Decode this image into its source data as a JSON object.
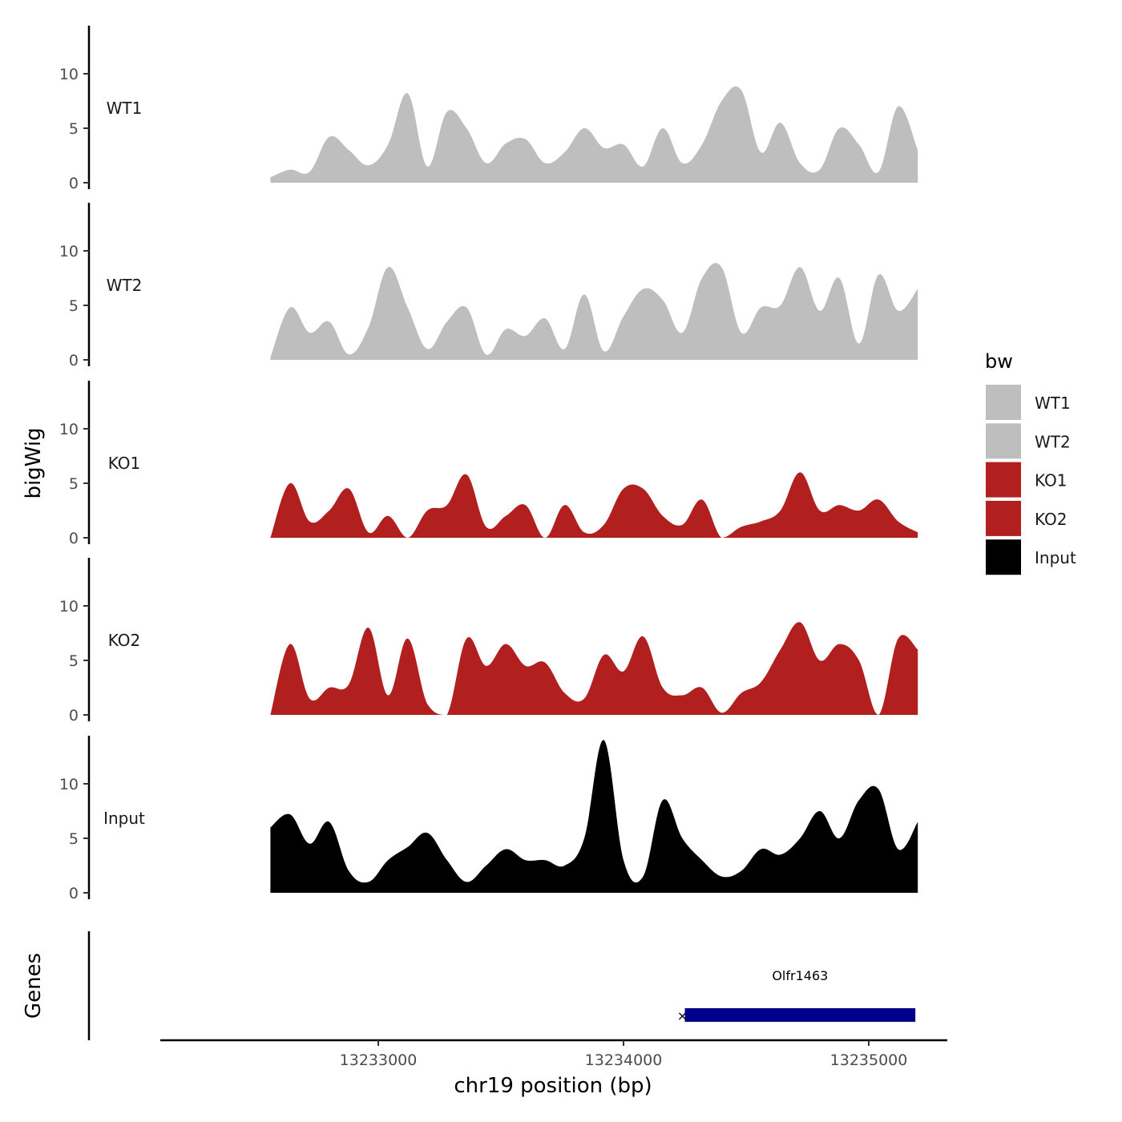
{
  "chart_data": {
    "type": "area",
    "x_axis": {
      "title": "chr19 position (bp)",
      "range": [
        13232100,
        13235300
      ],
      "ticks": [
        13233000,
        13234000,
        13235000
      ],
      "tick_labels": [
        "13233000",
        "13234000",
        "13235000"
      ]
    },
    "y_axis": {
      "title": "bigWig",
      "range": [
        0,
        14.5
      ],
      "ticks": [
        0,
        5,
        10
      ],
      "tick_labels": [
        "0",
        "5",
        "10"
      ]
    },
    "series_x": [
      13232560,
      13232640,
      13232720,
      13232800,
      13232880,
      13232960,
      13233040,
      13233120,
      13233200,
      13233280,
      13233360,
      13233440,
      13233520,
      13233600,
      13233680,
      13233760,
      13233840,
      13233920,
      13234000,
      13234080,
      13234160,
      13234240,
      13234320,
      13234400,
      13234480,
      13234560,
      13234640,
      13234720,
      13234800,
      13234880,
      13234960,
      13235040,
      13235120,
      13235200
    ],
    "series": [
      {
        "name": "WT1",
        "color": "#bebebe",
        "values": [
          0.5,
          1.2,
          1.0,
          4.2,
          3.0,
          1.6,
          3.5,
          8.2,
          1.5,
          6.5,
          5.0,
          1.8,
          3.6,
          4.0,
          1.8,
          2.8,
          5.0,
          3.2,
          3.5,
          1.5,
          5.0,
          1.8,
          3.5,
          7.5,
          8.5,
          2.8,
          5.5,
          1.8,
          1.2,
          5.0,
          3.5,
          1.0,
          7.0,
          3.0
        ]
      },
      {
        "name": "WT2",
        "color": "#bebebe",
        "values": [
          0.2,
          4.8,
          2.5,
          3.5,
          0.5,
          3.0,
          8.5,
          4.8,
          1.0,
          3.5,
          4.8,
          0.5,
          2.8,
          2.2,
          3.8,
          1.0,
          6.0,
          0.8,
          4.0,
          6.5,
          5.5,
          2.5,
          7.5,
          8.5,
          2.5,
          4.8,
          5.0,
          8.5,
          4.5,
          7.5,
          1.5,
          7.8,
          4.5,
          6.5
        ]
      },
      {
        "name": "KO1",
        "color": "#b21f1f",
        "values": [
          0.0,
          5.0,
          1.5,
          2.5,
          4.5,
          0.5,
          2.0,
          0.0,
          2.5,
          3.0,
          5.8,
          1.0,
          2.0,
          3.0,
          0.0,
          3.0,
          0.5,
          1.2,
          4.5,
          4.5,
          2.0,
          1.2,
          3.5,
          0.0,
          1.0,
          1.5,
          2.5,
          6.0,
          2.5,
          3.0,
          2.5,
          3.5,
          1.5,
          0.5
        ]
      },
      {
        "name": "KO2",
        "color": "#b21f1f",
        "values": [
          0.0,
          6.5,
          1.5,
          2.5,
          2.8,
          8.0,
          1.8,
          7.0,
          1.0,
          0.0,
          7.0,
          4.5,
          6.5,
          4.5,
          4.8,
          2.0,
          1.5,
          5.5,
          4.0,
          7.2,
          2.5,
          1.8,
          2.5,
          0.2,
          2.0,
          3.0,
          6.0,
          8.5,
          5.0,
          6.5,
          5.0,
          0.0,
          7.0,
          6.0
        ]
      },
      {
        "name": "Input",
        "color": "#000000",
        "values": [
          6.0,
          7.2,
          4.5,
          6.5,
          2.0,
          1.0,
          3.0,
          4.2,
          5.5,
          3.0,
          1.0,
          2.5,
          4.0,
          3.0,
          3.0,
          2.5,
          5.0,
          14.0,
          3.0,
          1.5,
          8.5,
          5.0,
          3.0,
          1.5,
          2.0,
          4.0,
          3.5,
          5.0,
          7.5,
          5.0,
          8.5,
          9.5,
          4.0,
          6.5
        ]
      }
    ],
    "track_labels": [
      "WT1",
      "WT2",
      "KO1",
      "KO2",
      "Input"
    ],
    "gene_track": {
      "title": "Genes",
      "gene": {
        "name": "Olfr1463",
        "start": 13234250,
        "end": 13235190,
        "strand": "-",
        "color": "#00008b"
      }
    },
    "legend": {
      "title": "bw",
      "position": "right",
      "entries": [
        {
          "label": "WT1",
          "color": "#bebebe"
        },
        {
          "label": "WT2",
          "color": "#bebebe"
        },
        {
          "label": "KO1",
          "color": "#b21f1f"
        },
        {
          "label": "KO2",
          "color": "#b21f1f"
        },
        {
          "label": "Input",
          "color": "#000000"
        }
      ]
    },
    "grid": false
  }
}
